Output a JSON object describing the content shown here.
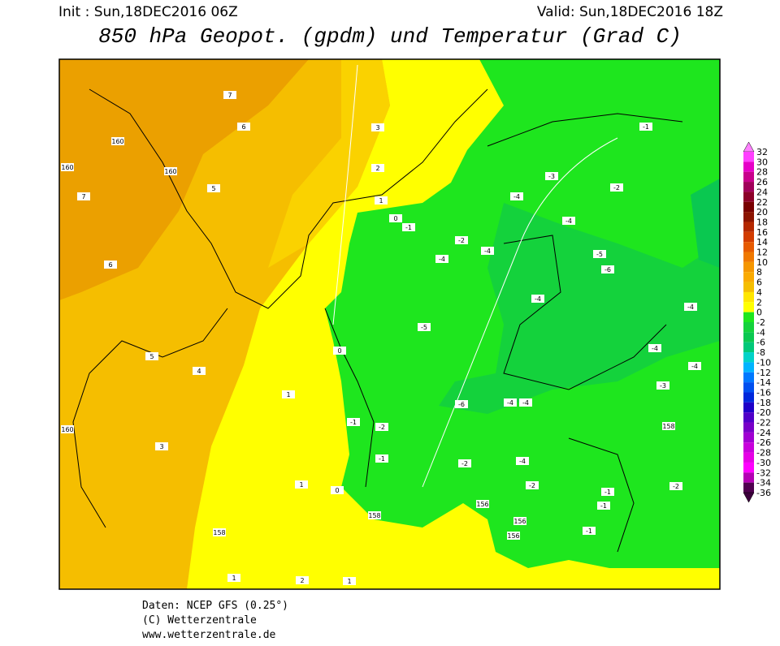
{
  "header": {
    "init": "Init : Sun,18DEC2016 06Z",
    "valid": "Valid: Sun,18DEC2016 18Z",
    "title": "850 hPa Geopot. (gpdm) und Temperatur (Grad C)"
  },
  "legend": {
    "levels": [
      32,
      30,
      28,
      26,
      24,
      22,
      20,
      18,
      16,
      14,
      12,
      10,
      8,
      6,
      4,
      2,
      0,
      -2,
      -4,
      -6,
      -8,
      -10,
      -12,
      -14,
      -16,
      -18,
      -20,
      -22,
      -24,
      -26,
      -28,
      -30,
      -32,
      -34,
      -36
    ],
    "colors": [
      "#ff40ff",
      "#e600c8",
      "#c8008c",
      "#a0005a",
      "#8c0028",
      "#780000",
      "#8c1400",
      "#b42800",
      "#d23c00",
      "#e65a00",
      "#f07800",
      "#f59600",
      "#faaa00",
      "#f5be00",
      "#ffe600",
      "#ffff00",
      "#1ee61e",
      "#14d23c",
      "#0ac850",
      "#00c878",
      "#00d2c8",
      "#00b4ff",
      "#0078ff",
      "#0050f0",
      "#0028dc",
      "#1e00c8",
      "#5000c8",
      "#7800c8",
      "#a000d2",
      "#c800dc",
      "#e600e6",
      "#ff00ff",
      "#b400b4",
      "#500050"
    ],
    "top_color": "#ff80ff",
    "bottom_color": "#3c003c"
  },
  "map": {
    "labels": [
      "7",
      "7",
      "6",
      "6",
      "5",
      "5",
      "4",
      "3",
      "3",
      "2",
      "1",
      "0",
      "-1",
      "-2",
      "-4",
      "-4",
      "-4",
      "-3",
      "-2",
      "-1",
      "-4",
      "-5",
      "-6",
      "-4",
      "-4",
      "-5",
      "-6",
      "-4",
      "-4",
      "-2",
      "-1",
      "-1",
      "-2",
      "-4",
      "-2",
      "-2",
      "-1",
      "-1",
      "-1",
      "-4",
      "-4",
      "-3",
      "160",
      "160",
      "160",
      "160",
      "158",
      "158",
      "158",
      "156",
      "156",
      "156",
      "1",
      "1",
      "0",
      "0",
      "2",
      "1",
      "1"
    ]
  },
  "footer": [
    "Daten: NCEP GFS (0.25°)",
    "(C) Wetterzentrale",
    "www.wetterzentrale.de"
  ]
}
